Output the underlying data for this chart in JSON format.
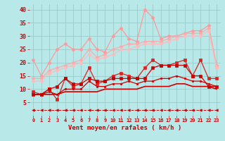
{
  "background_color": "#b8e8e8",
  "grid_color": "#99cccc",
  "xlabel": "Vent moyen/en rafales ( km/h )",
  "xlabel_color": "#cc0000",
  "tick_color": "#cc0000",
  "x_values": [
    0,
    1,
    2,
    3,
    4,
    5,
    6,
    7,
    8,
    9,
    10,
    11,
    12,
    13,
    14,
    15,
    16,
    17,
    18,
    19,
    20,
    21,
    22,
    23
  ],
  "ylim": [
    0,
    42
  ],
  "yticks": [
    5,
    10,
    15,
    20,
    25,
    30,
    35,
    40
  ],
  "series": [
    {
      "name": "line_top_jagged1",
      "color": "#ff9999",
      "linewidth": 0.9,
      "marker": "D",
      "markersize": 2.5,
      "linestyle": "-",
      "values": [
        21,
        15,
        20,
        25,
        27,
        25,
        25,
        29,
        25,
        24,
        30,
        33,
        29,
        28,
        40,
        37,
        29,
        30,
        30,
        31,
        32,
        32,
        34,
        19
      ]
    },
    {
      "name": "line_top_smooth1",
      "color": "#ffaaaa",
      "linewidth": 0.9,
      "marker": "D",
      "markersize": 2.5,
      "linestyle": "-",
      "values": [
        14,
        14,
        17,
        18,
        19,
        20,
        21,
        25,
        22,
        23,
        25,
        26,
        27,
        27,
        28,
        28,
        28,
        29,
        30,
        31,
        31,
        31,
        33,
        19
      ]
    },
    {
      "name": "line_top_smooth2",
      "color": "#ffbbbb",
      "linewidth": 0.9,
      "marker": "D",
      "markersize": 2.5,
      "linestyle": "-",
      "values": [
        13,
        13,
        16,
        17,
        18,
        19,
        20,
        23,
        21,
        22,
        23,
        25,
        25,
        26,
        27,
        27,
        27,
        28,
        29,
        30,
        30,
        30,
        32,
        18
      ]
    },
    {
      "name": "line_mid_jagged",
      "color": "#dd2222",
      "linewidth": 0.9,
      "marker": "s",
      "markersize": 2.5,
      "linestyle": "-",
      "values": [
        9,
        8,
        10,
        6,
        14,
        11,
        12,
        18,
        12,
        13,
        15,
        16,
        15,
        14,
        18,
        21,
        19,
        19,
        20,
        21,
        15,
        21,
        14,
        14
      ]
    },
    {
      "name": "line_mid_jagged2",
      "color": "#cc0000",
      "linewidth": 0.9,
      "marker": "s",
      "markersize": 2.5,
      "linestyle": "-",
      "values": [
        8,
        8,
        10,
        11,
        14,
        12,
        12,
        14,
        13,
        13,
        14,
        14,
        14,
        14,
        14,
        18,
        19,
        19,
        19,
        19,
        15,
        15,
        11,
        11
      ]
    },
    {
      "name": "line_mid_smooth",
      "color": "#cc0000",
      "linewidth": 0.9,
      "marker": "s",
      "markersize": 2.0,
      "linestyle": "-",
      "values": [
        8,
        8,
        9,
        8,
        10,
        10,
        10,
        13,
        11,
        11,
        12,
        12,
        13,
        12,
        13,
        13,
        14,
        14,
        15,
        14,
        13,
        13,
        12,
        11
      ]
    },
    {
      "name": "line_lower_smooth",
      "color": "#cc0000",
      "linewidth": 1.2,
      "marker": null,
      "markersize": 0,
      "linestyle": "-",
      "values": [
        8,
        8,
        8,
        8,
        9,
        9,
        9,
        9,
        9,
        10,
        10,
        10,
        10,
        10,
        11,
        11,
        11,
        11,
        12,
        12,
        11,
        11,
        11,
        10
      ]
    },
    {
      "name": "line_bottom_dashed",
      "color": "#cc0000",
      "linewidth": 0.7,
      "marker": "<",
      "markersize": 2.5,
      "linestyle": "--",
      "values": [
        2,
        2,
        2,
        2,
        2,
        2,
        2,
        2,
        2,
        2,
        2,
        2,
        2,
        2,
        2,
        2,
        2,
        2,
        2,
        2,
        2,
        2,
        2,
        2
      ]
    }
  ]
}
